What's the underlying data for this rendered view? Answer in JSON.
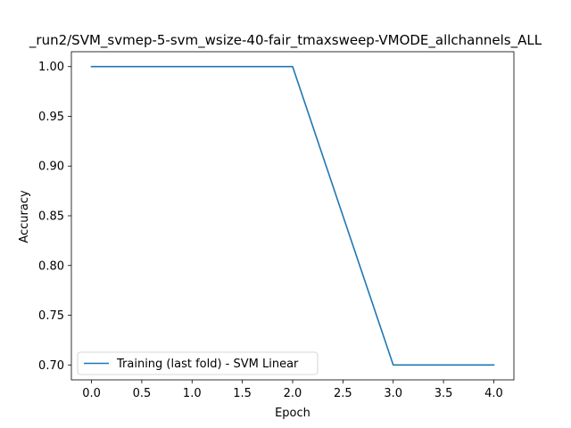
{
  "chart_data": {
    "type": "line",
    "title": "_run2/SVM_svmep-5-svm_wsize-40-fair_tmaxsweep-VMODE_allchannels_ALL",
    "xlabel": "Epoch",
    "ylabel": "Accuracy",
    "x": [
      0,
      1,
      2,
      3,
      4
    ],
    "xlim": [
      -0.2,
      4.2
    ],
    "ylim": [
      0.685,
      1.015
    ],
    "x_ticks": [
      0.0,
      0.5,
      1.0,
      1.5,
      2.0,
      2.5,
      3.0,
      3.5,
      4.0
    ],
    "x_tick_labels": [
      "0.0",
      "0.5",
      "1.0",
      "1.5",
      "2.0",
      "2.5",
      "3.0",
      "3.5",
      "4.0"
    ],
    "y_ticks": [
      0.7,
      0.75,
      0.8,
      0.85,
      0.9,
      0.95,
      1.0
    ],
    "y_tick_labels": [
      "0.70",
      "0.75",
      "0.80",
      "0.85",
      "0.90",
      "0.95",
      "1.00"
    ],
    "grid": false,
    "legend_position": "lower-left",
    "series": [
      {
        "name": "Training (last fold) - SVM Linear",
        "color": "#1f77b4",
        "values": [
          1.0,
          1.0,
          1.0,
          0.7,
          0.7
        ]
      }
    ]
  }
}
